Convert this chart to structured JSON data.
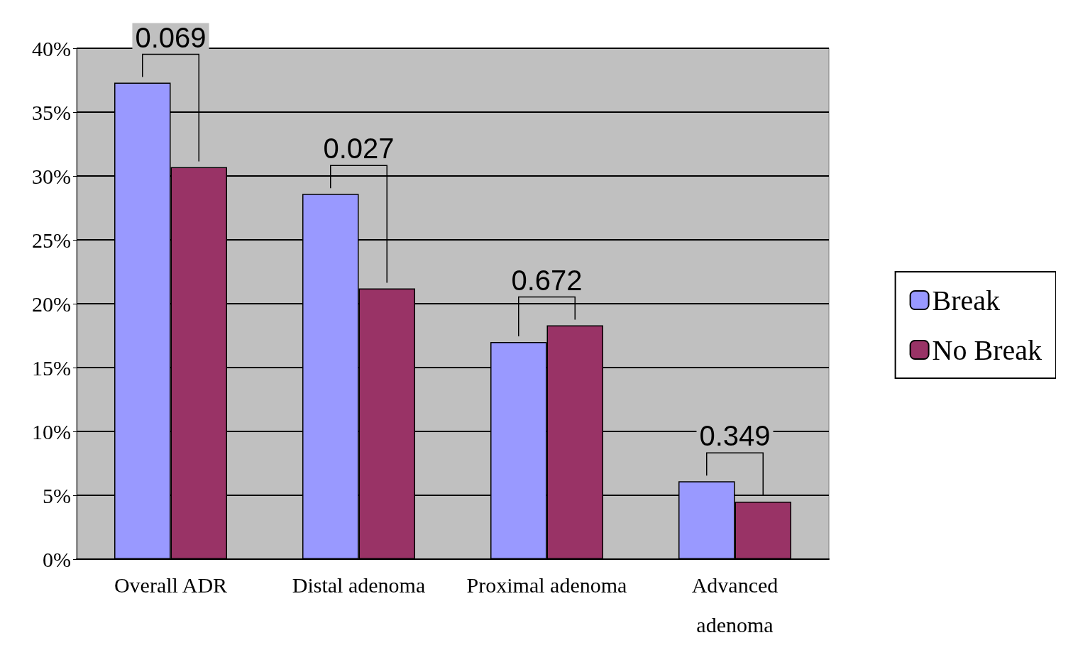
{
  "chart_data": {
    "type": "bar",
    "categories": [
      "Overall ADR",
      "Distal adenoma",
      "Proximal adenoma",
      "Advanced\nadenoma"
    ],
    "series": [
      {
        "name": "Break",
        "color": "#9999ff",
        "values": [
          37.3,
          28.6,
          17.0,
          6.1
        ]
      },
      {
        "name": "No Break",
        "color": "#993366",
        "values": [
          30.7,
          21.2,
          18.3,
          4.5
        ]
      }
    ],
    "ylim": [
      0,
      40
    ],
    "yticks": [
      {
        "value": 0,
        "label": "0%"
      },
      {
        "value": 5,
        "label": "5%"
      },
      {
        "value": 10,
        "label": "10%"
      },
      {
        "value": 15,
        "label": "15%"
      },
      {
        "value": 20,
        "label": "20%"
      },
      {
        "value": 25,
        "label": "25%"
      },
      {
        "value": 30,
        "label": "30%"
      },
      {
        "value": 35,
        "label": "35%"
      },
      {
        "value": 40,
        "label": "40%"
      }
    ],
    "grid": "y",
    "legend": "right",
    "annotations": [
      {
        "text": "0.069",
        "x": "Overall ADR",
        "y": 37.3
      },
      {
        "text": "0.027",
        "x": "Distal adenoma",
        "y": 28.6
      },
      {
        "text": "0.672",
        "x": "Proximal adenoma",
        "y": 18.3
      },
      {
        "text": "0.349",
        "x": "Advanced\nadenoma",
        "y": 6.1
      }
    ]
  }
}
